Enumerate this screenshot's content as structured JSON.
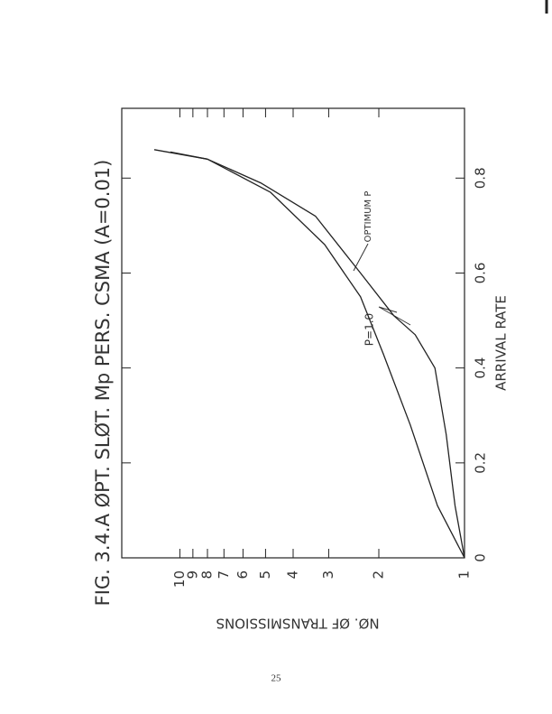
{
  "chart_data": {
    "type": "line",
    "title": "FIG. 3.4.A ØPT. SLØT. Mp PERS. CSMA (A=0.01)",
    "x_label": "ARRIVAL RATE",
    "y_label": "NØ. ØF TRANSMISSIONS",
    "annotations": [
      "P=1.0",
      "OPTIMUM P"
    ],
    "page_number": "25",
    "series": [
      {
        "color": "#222222",
        "x": [
          0,
          0.11,
          0.28,
          0.43,
          0.55,
          0.66,
          0.77,
          0.84,
          0.86
        ],
        "values": [
          1,
          1.245,
          1.55,
          1.93,
          2.32,
          3.1,
          4.8,
          8.0,
          12.3
        ]
      },
      {
        "color": "#222222",
        "x": [
          0,
          0.11,
          0.26,
          0.4,
          0.47,
          0.51,
          0.6,
          0.72,
          0.79,
          0.84,
          0.855
        ],
        "values": [
          1,
          1.08,
          1.16,
          1.27,
          1.49,
          1.77,
          2.32,
          3.34,
          5.2,
          8.0,
          10.8
        ]
      }
    ],
    "xlim": [
      0,
      0.947
    ],
    "xticks": [
      0,
      0.2,
      0.4,
      0.6,
      0.8
    ],
    "ylim": [
      1,
      16
    ],
    "yticks": [
      1,
      2,
      3,
      4,
      5,
      6,
      7,
      8,
      9,
      10
    ],
    "ylog": true
  }
}
